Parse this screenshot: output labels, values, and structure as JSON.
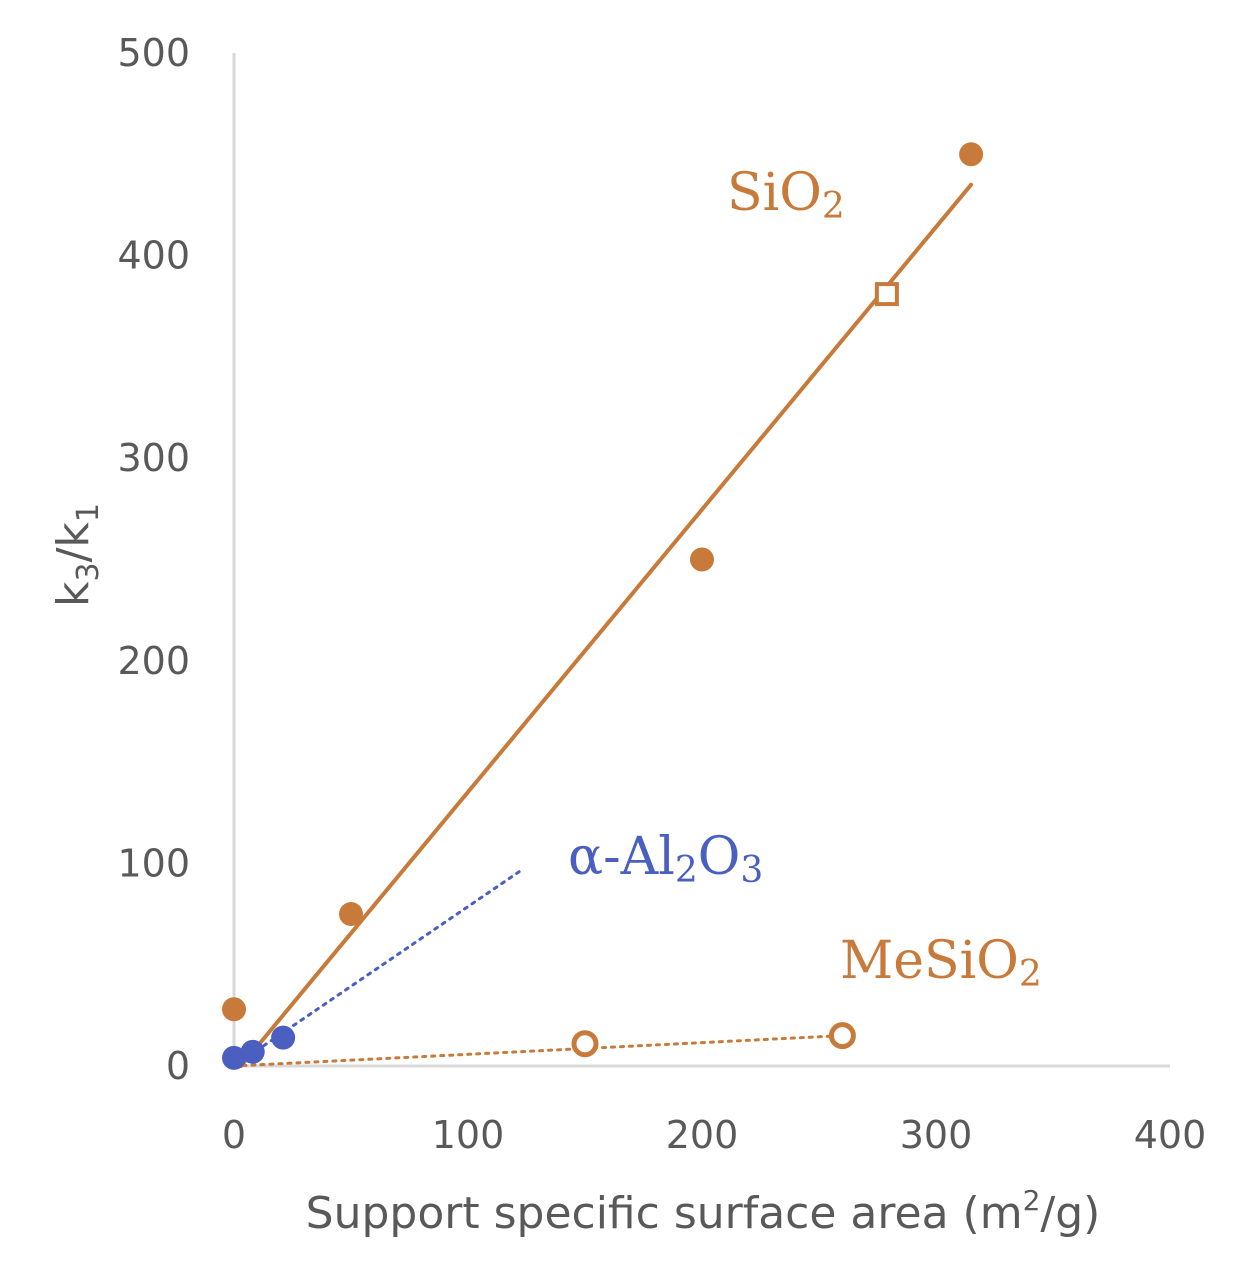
{
  "chart_data": {
    "type": "scatter",
    "xlabel": {
      "main": "Support specific surface area (m",
      "sup": "2",
      "tail": "/g)"
    },
    "ylabel": {
      "k1": "k",
      "s1": "3",
      "slash": "/k",
      "s2": "1"
    },
    "xlim": [
      0,
      400
    ],
    "ylim": [
      0,
      500
    ],
    "x_ticks": [
      "0",
      "100",
      "200",
      "300",
      "400"
    ],
    "y_ticks": [
      "0",
      "100",
      "200",
      "300",
      "400",
      "500"
    ],
    "grid": false,
    "colors": {
      "sio2": "#c87a3a",
      "mesio2": "#c87a3a",
      "al2o3": "#4a5fc0",
      "axis": "#d9d9d9",
      "tick_text": "#595959"
    },
    "series": [
      {
        "name": "SiO2",
        "label": {
          "main": "SiO",
          "sub": "2"
        },
        "marker": "filled-circle",
        "points": [
          [
            0,
            28
          ],
          [
            50,
            75
          ],
          [
            200,
            250
          ],
          [
            315,
            450
          ]
        ],
        "extra_points": [
          {
            "x": 279,
            "y": 381,
            "marker": "open-square"
          }
        ],
        "trendline": {
          "style": "solid",
          "from": [
            3,
            0
          ],
          "to": [
            315,
            435
          ]
        }
      },
      {
        "name": "α-Al2O3",
        "label": {
          "a": "α-Al",
          "s1": "2",
          "b": "O",
          "s2": "3"
        },
        "marker": "filled-circle",
        "points": [
          [
            0,
            4
          ],
          [
            8,
            7
          ],
          [
            21,
            14
          ]
        ],
        "trendline": {
          "style": "dotted",
          "from": [
            0,
            0
          ],
          "to": [
            122,
            96
          ]
        }
      },
      {
        "name": "MeSiO2",
        "label": {
          "main": "MeSiO",
          "sub": "2"
        },
        "marker": "open-circle",
        "points": [
          [
            150,
            11
          ],
          [
            260,
            15
          ]
        ],
        "trendline": {
          "style": "dotted",
          "from": [
            0,
            0
          ],
          "to": [
            260,
            15
          ]
        }
      }
    ]
  }
}
